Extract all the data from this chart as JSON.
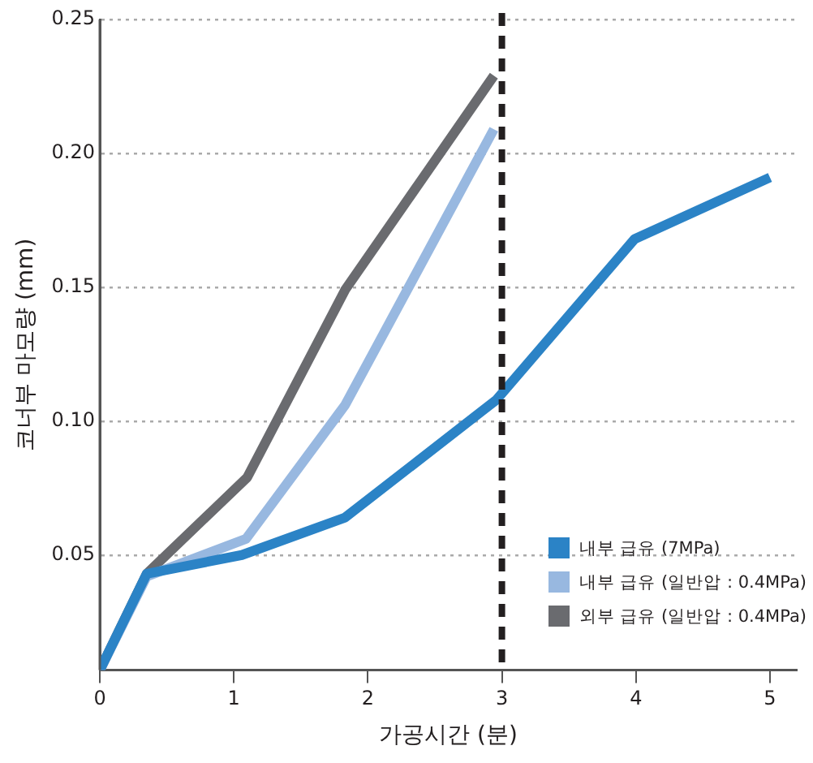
{
  "chart_data": {
    "type": "line",
    "xlabel": "가공시간 (분)",
    "ylabel": "코너부 마모량 (mm)",
    "xlim": [
      0,
      5.2
    ],
    "xticks": [
      0,
      1,
      2,
      3,
      4,
      5
    ],
    "ylim": [
      0.007,
      0.25
    ],
    "yticks": [
      0.05,
      {
        "value": 0.1,
        "label": "0.10"
      },
      0.15,
      {
        "value": 0.2,
        "label": "0.20"
      },
      0.25
    ],
    "series": [
      {
        "name": "내부 급유 (7MPa)",
        "color": "#2b83c6",
        "x": [
          0,
          0.35,
          1.06,
          1.83,
          2.96,
          3.99,
          5.0
        ],
        "values": [
          0.007,
          0.043,
          0.05,
          0.064,
          0.108,
          0.168,
          0.191
        ]
      },
      {
        "name": "내부 급유 (일반압 : 0.4MPa)",
        "color": "#98b8e0",
        "x": [
          0,
          0.35,
          1.09,
          1.83,
          2.94
        ],
        "values": [
          0.007,
          0.042,
          0.056,
          0.106,
          0.209
        ]
      },
      {
        "name": "외부 급유 (일반압 : 0.4MPa)",
        "color": "#6a6b6f",
        "x": [
          0,
          0.35,
          1.1,
          1.83,
          2.94
        ],
        "values": [
          0.007,
          0.043,
          0.079,
          0.149,
          0.229
        ]
      }
    ],
    "ref_lines": [
      {
        "axis": "x",
        "value": 3,
        "color": "#231f20",
        "line_style": "dashed"
      }
    ],
    "grid": "y",
    "legend": "bottom right",
    "marker": "none",
    "line_style": "solid"
  }
}
